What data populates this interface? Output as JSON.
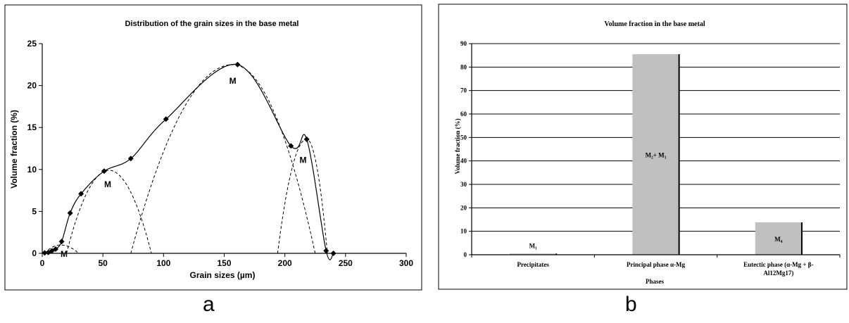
{
  "chart_data": [
    {
      "type": "line",
      "title": "Distribution of the grain sizes in the base metal",
      "xlabel": "Grain sizes (µm)",
      "ylabel": "Volume fraction (%)",
      "xlim": [
        0,
        300
      ],
      "ylim": [
        0,
        25
      ],
      "xticks": [
        "0",
        "50",
        "100",
        "150",
        "200",
        "250",
        "300"
      ],
      "yticks": [
        "0",
        "5",
        "10",
        "15",
        "20",
        "25"
      ],
      "grid": false,
      "series": [
        {
          "x": [
            2,
            5,
            8,
            11,
            16,
            23,
            32,
            51,
            73,
            102,
            161,
            205,
            218,
            234,
            240
          ],
          "y": [
            0.05,
            0.1,
            0.3,
            0.5,
            1.4,
            4.8,
            7.1,
            9.8,
            11.3,
            16.0,
            22.5,
            12.8,
            13.6,
            0.3,
            0.0
          ]
        }
      ],
      "fitted_peaks": [
        {
          "center": 15,
          "height": 1.0,
          "from": 2,
          "to": 30
        },
        {
          "center": 55,
          "height": 9.9,
          "from": 20,
          "to": 90
        },
        {
          "center": 157,
          "height": 22.5,
          "from": 73,
          "to": 225
        },
        {
          "center": 218,
          "height": 13.6,
          "from": 194,
          "to": 235
        }
      ],
      "annotations": [
        {
          "text": "M",
          "x": 18,
          "y": -0.4
        },
        {
          "text": "M",
          "x": 54,
          "y": 7.9
        },
        {
          "text": "M",
          "x": 157,
          "y": 20.2
        },
        {
          "text": "M",
          "x": 215,
          "y": 10.8
        }
      ],
      "panel_label": "a"
    },
    {
      "type": "bar",
      "title": "Volume fraction in the base metal",
      "xlabel": "Phases",
      "ylabel": "Volume fraction (%)",
      "ylim": [
        0,
        90
      ],
      "yticks": [
        "0",
        "10",
        "20",
        "30",
        "40",
        "50",
        "60",
        "70",
        "80",
        "90"
      ],
      "grid": true,
      "categories": [
        [
          "Precipitates"
        ],
        [
          "Principal phase α-Mg"
        ],
        [
          "Eutectic phase (α-Mg + β-",
          "Al12Mg17)"
        ]
      ],
      "values": [
        0.5,
        85.5,
        13.8
      ],
      "bar_labels": [
        "M₁",
        "M₂+ M₃",
        "M₄"
      ],
      "panel_label": "b"
    }
  ]
}
